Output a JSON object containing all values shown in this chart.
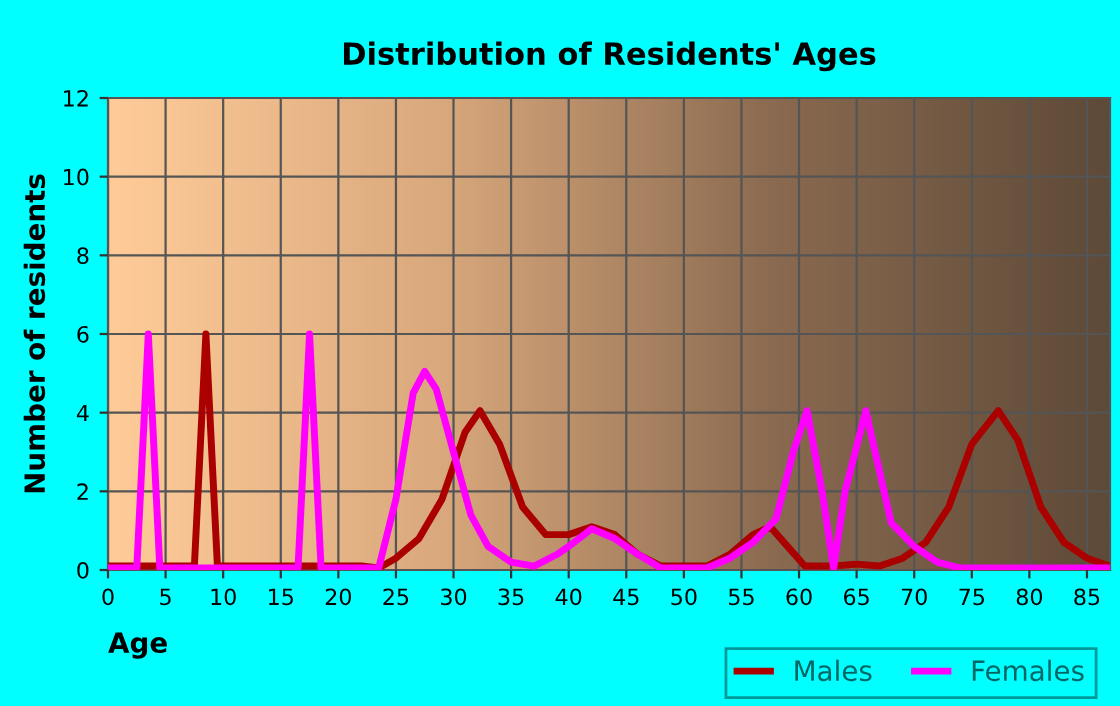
{
  "chart_data": {
    "type": "line",
    "title": "Distribution of Residents' Ages",
    "xlabel": "Age",
    "ylabel": "Number of residents",
    "xlim": [
      0,
      87
    ],
    "xticks": [
      0,
      5,
      10,
      15,
      20,
      25,
      30,
      35,
      40,
      45,
      50,
      55,
      60,
      65,
      70,
      75,
      80,
      85
    ],
    "ylim": [
      0,
      12
    ],
    "yticks": [
      0,
      2,
      4,
      6,
      8,
      10,
      12
    ],
    "grid": true,
    "legend": "bottom",
    "marker": "none",
    "line_style": "solid",
    "series": [
      {
        "name": "Males",
        "color": "#aa0000",
        "x": [
          0,
          7.5,
          8.5,
          9.5,
          22,
          23.5,
          25,
          27,
          29,
          31,
          32.3,
          34,
          36,
          38,
          40,
          42,
          44,
          46,
          48,
          52,
          54,
          56,
          57.5,
          59,
          60.5,
          63,
          65,
          67,
          69,
          71,
          73,
          75,
          77.3,
          79,
          81,
          83,
          85,
          87
        ],
        "values": [
          0.1,
          0.1,
          6,
          0.1,
          0.1,
          0.05,
          0.3,
          0.8,
          1.8,
          3.5,
          4.05,
          3.2,
          1.6,
          0.9,
          0.9,
          1.1,
          0.9,
          0.4,
          0.1,
          0.1,
          0.4,
          0.9,
          1.1,
          0.6,
          0.1,
          0.1,
          0.15,
          0.1,
          0.3,
          0.7,
          1.6,
          3.2,
          4.05,
          3.3,
          1.6,
          0.7,
          0.3,
          0.1
        ]
      },
      {
        "name": "Females",
        "color": "#ff00ff",
        "x": [
          0,
          2.5,
          3.5,
          4.5,
          16.5,
          17.5,
          18.5,
          23.5,
          25,
          26.5,
          27.5,
          28.5,
          30,
          31.5,
          33,
          35,
          37,
          39,
          40,
          42,
          44,
          46,
          48,
          52,
          54,
          56,
          58,
          59.5,
          60.7,
          62,
          63,
          64,
          65.8,
          67,
          68,
          70,
          72,
          74,
          87
        ],
        "values": [
          0.05,
          0.05,
          6,
          0.05,
          0.05,
          6,
          0.05,
          0.05,
          1.8,
          4.5,
          5.05,
          4.6,
          3,
          1.4,
          0.6,
          0.2,
          0.1,
          0.4,
          0.6,
          1.05,
          0.8,
          0.4,
          0.05,
          0.05,
          0.3,
          0.7,
          1.3,
          3,
          4.05,
          2,
          0.05,
          2,
          4.05,
          2.5,
          1.2,
          0.6,
          0.2,
          0.05,
          0.05
        ]
      }
    ]
  }
}
